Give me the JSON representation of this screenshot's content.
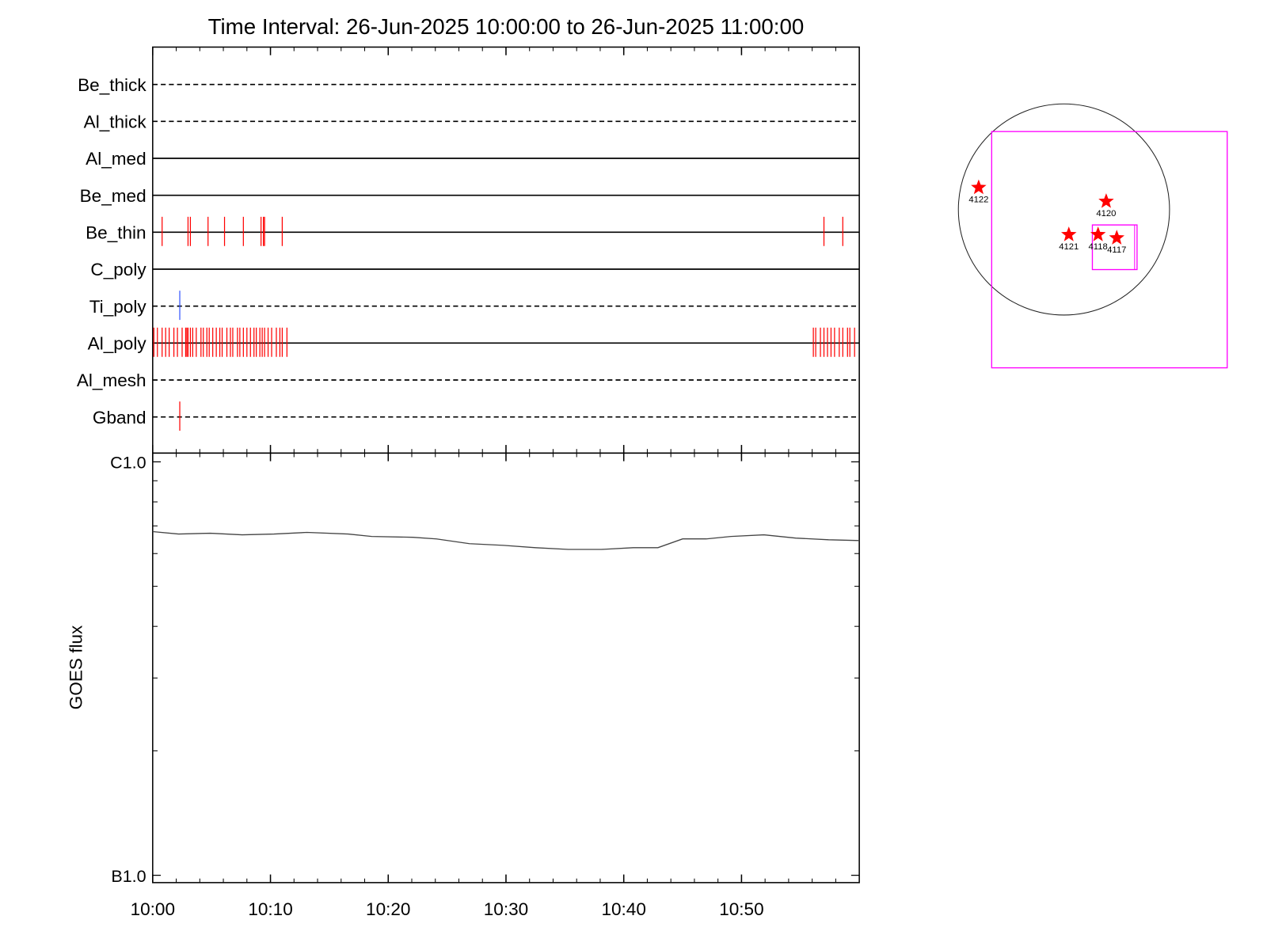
{
  "chart_data": [
    {
      "type": "timeline",
      "title": "Time Interval: 26-Jun-2025 10:00:00 to 26-Jun-2025 11:00:00",
      "xlim": [
        0,
        60
      ],
      "rows": [
        {
          "name": "Be_thick",
          "line": "dashed",
          "color": "#ff0000",
          "events": []
        },
        {
          "name": "Al_thick",
          "line": "dashed",
          "color": "#ff0000",
          "events": []
        },
        {
          "name": "Al_med",
          "line": "solid",
          "color": "#ff0000",
          "events": []
        },
        {
          "name": "Be_med",
          "line": "solid",
          "color": "#ff0000",
          "events": []
        },
        {
          "name": "Be_thin",
          "line": "solid",
          "color": "#ff0000",
          "events": [
            0.8,
            3.0,
            3.2,
            4.7,
            6.1,
            7.7,
            9.2,
            9.4,
            9.5,
            11.0,
            57.0,
            58.6
          ]
        },
        {
          "name": "C_poly",
          "line": "solid",
          "color": "#ff0000",
          "events": []
        },
        {
          "name": "Ti_poly",
          "line": "dashed",
          "color": "#3355ff",
          "events": [
            2.3
          ]
        },
        {
          "name": "Al_poly",
          "line": "solid",
          "color": "#ff0000",
          "events": [
            0.1,
            0.4,
            0.8,
            1.1,
            1.4,
            1.8,
            2.1,
            2.5,
            2.8,
            2.9,
            3.0,
            3.2,
            3.4,
            3.7,
            4.1,
            4.3,
            4.6,
            4.8,
            5.1,
            5.4,
            5.7,
            5.9,
            6.3,
            6.6,
            6.8,
            7.2,
            7.4,
            7.7,
            8.0,
            8.3,
            8.6,
            8.8,
            9.1,
            9.3,
            9.5,
            9.8,
            10.1,
            10.5,
            10.8,
            11.0,
            11.4,
            56.1,
            56.3,
            56.7,
            57.0,
            57.3,
            57.6,
            57.9,
            58.3,
            58.6,
            59.0,
            59.2,
            59.6
          ]
        },
        {
          "name": "Al_mesh",
          "line": "dashed",
          "color": "#ff0000",
          "events": []
        },
        {
          "name": "Gband",
          "line": "dashed",
          "color": "#ff0000",
          "events": [
            2.3
          ]
        }
      ]
    },
    {
      "type": "line",
      "ylabel": "GOES flux",
      "log_y": true,
      "xlim": [
        0,
        60
      ],
      "xticks": [
        {
          "value": 0,
          "label": "10:00"
        },
        {
          "value": 10,
          "label": "10:10"
        },
        {
          "value": 20,
          "label": "10:20"
        },
        {
          "value": 30,
          "label": "10:30"
        },
        {
          "value": 40,
          "label": "10:40"
        },
        {
          "value": 50,
          "label": "10:50"
        }
      ],
      "ylim": [
        9.6e-08,
        1.05e-06
      ],
      "yticks": [
        {
          "value": 1e-07,
          "label": "B1.0"
        },
        {
          "value": 1e-06,
          "label": "C1.0"
        }
      ],
      "series": [
        {
          "color": "#444444",
          "x": [
            0,
            2.2,
            4.9,
            7.6,
            10.3,
            13.1,
            16.6,
            18.6,
            22.1,
            24.1,
            26.9,
            29.8,
            32.5,
            35.3,
            38.1,
            40.8,
            42.9,
            45.0,
            47.0,
            49.1,
            51.9,
            54.6,
            57.4,
            60
          ],
          "values": [
            6.78e-07,
            6.69e-07,
            6.72e-07,
            6.66e-07,
            6.69e-07,
            6.75e-07,
            6.69e-07,
            6.6e-07,
            6.57e-07,
            6.51e-07,
            6.34e-07,
            6.28e-07,
            6.2e-07,
            6.14e-07,
            6.14e-07,
            6.2e-07,
            6.2e-07,
            6.51e-07,
            6.51e-07,
            6.6e-07,
            6.66e-07,
            6.54e-07,
            6.48e-07,
            6.45e-07
          ]
        }
      ]
    }
  ],
  "map": {
    "color": "#ff00ff",
    "marker_color": "#ff0000",
    "regions": [
      "4122",
      "4120",
      "4121",
      "4118",
      "4117"
    ]
  }
}
